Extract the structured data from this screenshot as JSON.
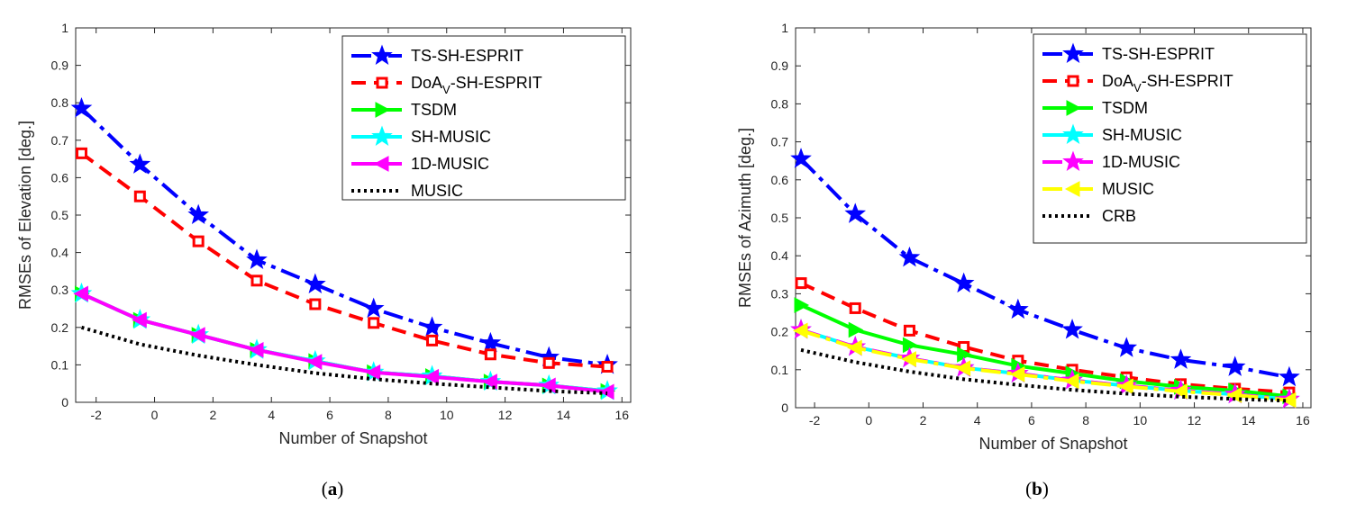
{
  "chart_data": [
    {
      "type": "line",
      "panel_label": "a",
      "xlabel": "Number of Snapshot",
      "ylabel": "RMSEs of Elevation [deg.]",
      "xlim": [
        -2.7,
        16.3
      ],
      "ylim": [
        0,
        1
      ],
      "xticks": [
        -2,
        0,
        2,
        4,
        6,
        8,
        10,
        12,
        14,
        16
      ],
      "yticks": [
        0,
        0.1,
        0.2,
        0.3,
        0.4,
        0.5,
        0.6,
        0.7,
        0.8,
        0.9,
        1
      ],
      "x": [
        -2.5,
        -0.5,
        1.5,
        3.5,
        5.5,
        7.5,
        9.5,
        11.5,
        13.5,
        15.5
      ],
      "legend_position": "top-right",
      "series": [
        {
          "name": "TS-SH-ESPRIT",
          "name_main": "TS-SH-ESPRIT",
          "name_sub": "",
          "name_rest": "",
          "color": "#0000ff",
          "dash": "dashdot",
          "marker": "star",
          "marker_fill": "#0000ff",
          "values": [
            0.785,
            0.635,
            0.5,
            0.38,
            0.315,
            0.25,
            0.2,
            0.158,
            0.12,
            0.1
          ]
        },
        {
          "name": "DoAV-SH-ESPRIT",
          "name_main": "DoA",
          "name_sub": "V",
          "name_rest": "-SH-ESPRIT",
          "color": "#ff0000",
          "dash": "dashed",
          "marker": "square",
          "marker_fill": "#ff0000",
          "values": [
            0.665,
            0.55,
            0.43,
            0.325,
            0.262,
            0.212,
            0.165,
            0.128,
            0.105,
            0.095
          ]
        },
        {
          "name": "TSDM",
          "name_main": "TSDM",
          "name_sub": "",
          "name_rest": "",
          "color": "#00ff00",
          "dash": "solid",
          "marker": "triangle-right",
          "marker_fill": "#00ff00",
          "values": [
            0.29,
            0.22,
            0.18,
            0.14,
            0.11,
            0.08,
            0.07,
            0.055,
            0.045,
            0.03
          ]
        },
        {
          "name": "SH-MUSIC",
          "name_main": "SH-MUSIC",
          "name_sub": "",
          "name_rest": "",
          "color": "#00ffff",
          "dash": "solid",
          "marker": "star",
          "marker_fill": "#00ffff",
          "values": [
            0.29,
            0.22,
            0.18,
            0.14,
            0.11,
            0.08,
            0.07,
            0.055,
            0.045,
            0.03
          ]
        },
        {
          "name": "1D-MUSIC",
          "name_main": "1D-MUSIC",
          "name_sub": "",
          "name_rest": "",
          "color": "#ff00ff",
          "dash": "solid",
          "marker": "triangle-left",
          "marker_fill": "#ff00ff",
          "values": [
            0.29,
            0.22,
            0.18,
            0.14,
            0.108,
            0.08,
            0.068,
            0.055,
            0.045,
            0.028
          ]
        },
        {
          "name": "MUSIC",
          "name_main": "MUSIC",
          "name_sub": "",
          "name_rest": "",
          "color": "#000000",
          "dash": "dotted",
          "marker": "none",
          "marker_fill": "#000000",
          "values": [
            0.2,
            0.155,
            0.125,
            0.1,
            0.078,
            0.062,
            0.05,
            0.04,
            0.03,
            0.024
          ]
        }
      ]
    },
    {
      "type": "line",
      "panel_label": "b",
      "xlabel": "Number of Snapshot",
      "ylabel": "RMSEs of Azimuth [deg.]",
      "xlim": [
        -2.7,
        16.3
      ],
      "ylim": [
        0,
        1
      ],
      "xticks": [
        -2,
        0,
        2,
        4,
        6,
        8,
        10,
        12,
        14,
        16
      ],
      "yticks": [
        0,
        0.1,
        0.2,
        0.3,
        0.4,
        0.5,
        0.6,
        0.7,
        0.8,
        0.9,
        1
      ],
      "x": [
        -2.5,
        -0.5,
        1.5,
        3.5,
        5.5,
        7.5,
        9.5,
        11.5,
        13.5,
        15.5
      ],
      "legend_position": "top-right",
      "series": [
        {
          "name": "TS-SH-ESPRIT",
          "name_main": "TS-SH-ESPRIT",
          "name_sub": "",
          "name_rest": "",
          "color": "#0000ff",
          "dash": "dashdot",
          "marker": "star",
          "marker_fill": "#0000ff",
          "values": [
            0.655,
            0.51,
            0.395,
            0.327,
            0.258,
            0.205,
            0.157,
            0.126,
            0.107,
            0.08
          ]
        },
        {
          "name": "DoAV-SH-ESPRIT",
          "name_main": "DoA",
          "name_sub": "V",
          "name_rest": "-SH-ESPRIT",
          "color": "#ff0000",
          "dash": "dashed",
          "marker": "square",
          "marker_fill": "#ff0000",
          "values": [
            0.328,
            0.262,
            0.203,
            0.16,
            0.124,
            0.1,
            0.08,
            0.062,
            0.05,
            0.04
          ]
        },
        {
          "name": "TSDM",
          "name_main": "TSDM",
          "name_sub": "",
          "name_rest": "",
          "color": "#00ff00",
          "dash": "solid",
          "marker": "triangle-right",
          "marker_fill": "#00ff00",
          "values": [
            0.27,
            0.205,
            0.165,
            0.14,
            0.11,
            0.09,
            0.07,
            0.055,
            0.045,
            0.03
          ]
        },
        {
          "name": "SH-MUSIC",
          "name_main": "SH-MUSIC",
          "name_sub": "",
          "name_rest": "",
          "color": "#00ffff",
          "dash": "solid",
          "marker": "star",
          "marker_fill": "#00ffff",
          "values": [
            0.205,
            0.16,
            0.13,
            0.105,
            0.09,
            0.072,
            0.058,
            0.045,
            0.035,
            0.022
          ]
        },
        {
          "name": "1D-MUSIC",
          "name_main": "1D-MUSIC",
          "name_sub": "",
          "name_rest": "",
          "color": "#ff00ff",
          "dash": "dashdot",
          "marker": "star",
          "marker_fill": "#ff00ff",
          "values": [
            0.205,
            0.16,
            0.13,
            0.105,
            0.09,
            0.072,
            0.058,
            0.045,
            0.035,
            0.022
          ]
        },
        {
          "name": "MUSIC",
          "name_main": "MUSIC",
          "name_sub": "",
          "name_rest": "",
          "color": "#ffff00",
          "dash": "dashdot",
          "marker": "triangle-left",
          "marker_fill": "#ffff00",
          "values": [
            0.203,
            0.158,
            0.128,
            0.104,
            0.088,
            0.07,
            0.056,
            0.043,
            0.033,
            0.02
          ]
        },
        {
          "name": "CRB",
          "name_main": "CRB",
          "name_sub": "",
          "name_rest": "",
          "color": "#000000",
          "dash": "dotted",
          "marker": "none",
          "marker_fill": "#000000",
          "values": [
            0.152,
            0.12,
            0.095,
            0.075,
            0.06,
            0.047,
            0.037,
            0.029,
            0.023,
            0.018
          ]
        }
      ]
    }
  ]
}
